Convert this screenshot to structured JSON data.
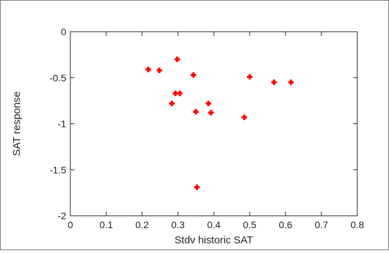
{
  "chart_data": {
    "type": "scatter",
    "title": "",
    "xlabel": "Stdv historic SAT",
    "ylabel": "SAT response",
    "xlim": [
      0,
      0.8
    ],
    "ylim": [
      -2,
      0
    ],
    "xticks": [
      "0",
      "0.1",
      "0.2",
      "0.3",
      "0.4",
      "0.5",
      "0.6",
      "0.7",
      "0.8"
    ],
    "yticks": [
      "0",
      "-0.5",
      "-1",
      "-1.5",
      "-2"
    ],
    "grid": false,
    "legend": "none",
    "marker_color": "#ff0000",
    "points": [
      {
        "x": 0.217,
        "y": -0.41
      },
      {
        "x": 0.248,
        "y": -0.42
      },
      {
        "x": 0.298,
        "y": -0.3
      },
      {
        "x": 0.283,
        "y": -0.78
      },
      {
        "x": 0.293,
        "y": -0.67
      },
      {
        "x": 0.305,
        "y": -0.67
      },
      {
        "x": 0.343,
        "y": -0.47
      },
      {
        "x": 0.35,
        "y": -0.87
      },
      {
        "x": 0.353,
        "y": -1.69
      },
      {
        "x": 0.385,
        "y": -0.78
      },
      {
        "x": 0.392,
        "y": -0.88
      },
      {
        "x": 0.485,
        "y": -0.93
      },
      {
        "x": 0.5,
        "y": -0.49
      },
      {
        "x": 0.568,
        "y": -0.55
      },
      {
        "x": 0.615,
        "y": -0.55
      }
    ]
  }
}
